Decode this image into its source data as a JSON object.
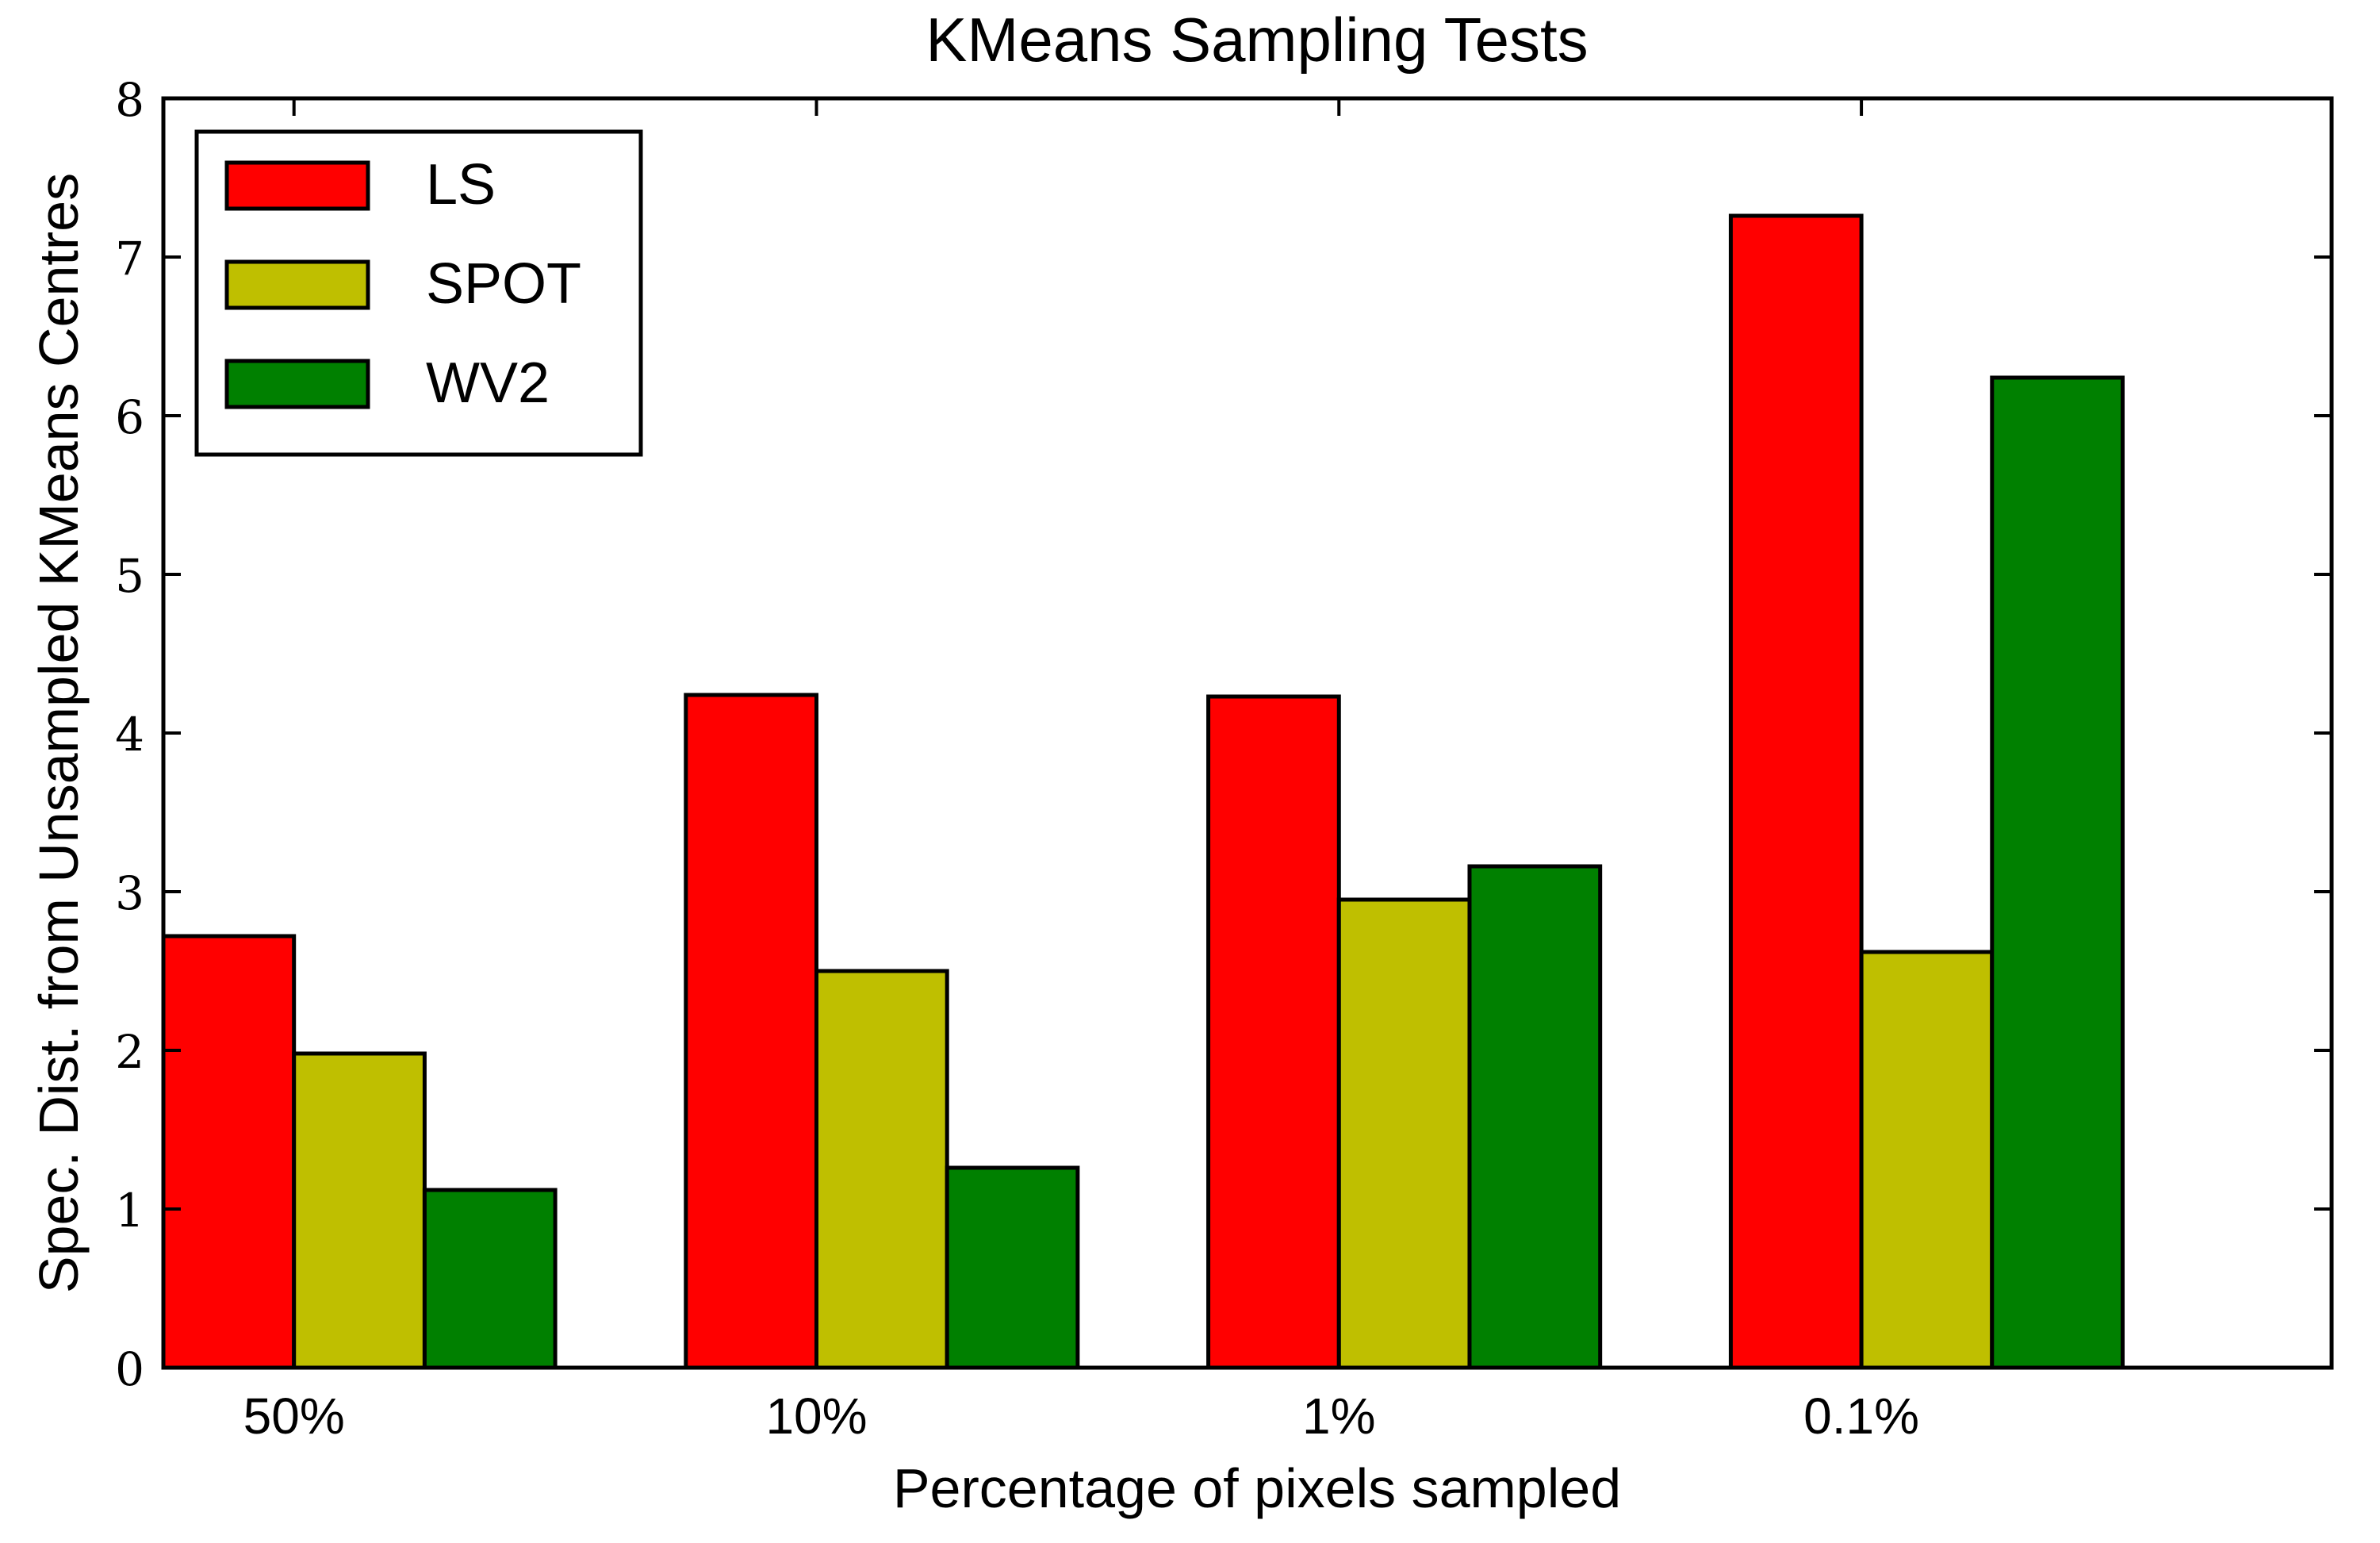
{
  "chart_data": {
    "type": "bar",
    "title": "KMeans Sampling Tests",
    "xlabel": "Percentage of pixels sampled",
    "ylabel": "Spec. Dist. from Unsampled KMeans Centres",
    "categories": [
      "50%",
      "10%",
      "1%",
      "0.1%"
    ],
    "ylim": [
      0,
      8
    ],
    "yticks": [
      "0",
      "1",
      "2",
      "3",
      "4",
      "5",
      "6",
      "7",
      "8"
    ],
    "grid": false,
    "legend_position": "top-left",
    "series": [
      {
        "name": "LS",
        "color": "#ff0000",
        "values": [
          2.72,
          4.24,
          4.23,
          7.26
        ]
      },
      {
        "name": "SPOT",
        "color": "#bfbf00",
        "values": [
          1.98,
          2.5,
          2.95,
          2.62
        ]
      },
      {
        "name": "WV2",
        "color": "#008000",
        "values": [
          1.12,
          1.26,
          3.16,
          6.24
        ]
      }
    ]
  }
}
